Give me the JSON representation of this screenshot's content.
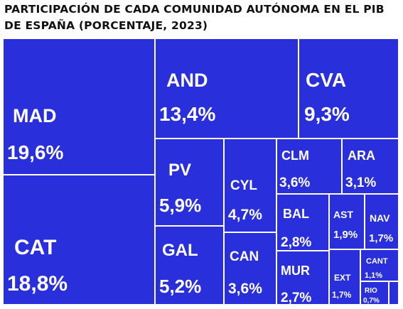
{
  "chart_data": {
    "type": "treemap",
    "title": "PARTICIPACIÓN DE CADA COMUNIDAD AUTÓNOMA EN EL PIB DE ESPAÑA (PORCENTAJE, 2023)",
    "tile_color": "#2a2fdc",
    "border_color": "#ffffff",
    "items": [
      {
        "name": "MAD",
        "label": "19,6%",
        "value": 19.6
      },
      {
        "name": "CAT",
        "label": "18,8%",
        "value": 18.8
      },
      {
        "name": "AND",
        "label": "13,4%",
        "value": 13.4
      },
      {
        "name": "CVA",
        "label": "9,3%",
        "value": 9.3
      },
      {
        "name": "PV",
        "label": "5,9%",
        "value": 5.9
      },
      {
        "name": "GAL",
        "label": "5,2%",
        "value": 5.2
      },
      {
        "name": "CYL",
        "label": "4,7%",
        "value": 4.7
      },
      {
        "name": "CAN",
        "label": "3,6%",
        "value": 3.6
      },
      {
        "name": "CLM",
        "label": "3,6%",
        "value": 3.6
      },
      {
        "name": "ARA",
        "label": "3,1%",
        "value": 3.1
      },
      {
        "name": "BAL",
        "label": "2,8%",
        "value": 2.8
      },
      {
        "name": "MUR",
        "label": "2,7%",
        "value": 2.7
      },
      {
        "name": "AST",
        "label": "1,9%",
        "value": 1.9
      },
      {
        "name": "NAV",
        "label": "1,7%",
        "value": 1.7
      },
      {
        "name": "EXT",
        "label": "1,7%",
        "value": 1.7
      },
      {
        "name": "CANT",
        "label": "1,1%",
        "value": 1.1
      },
      {
        "name": "RIO",
        "label": "0,7%",
        "value": 0.7
      },
      {
        "name": "",
        "label": "",
        "value": 0.3
      }
    ]
  }
}
